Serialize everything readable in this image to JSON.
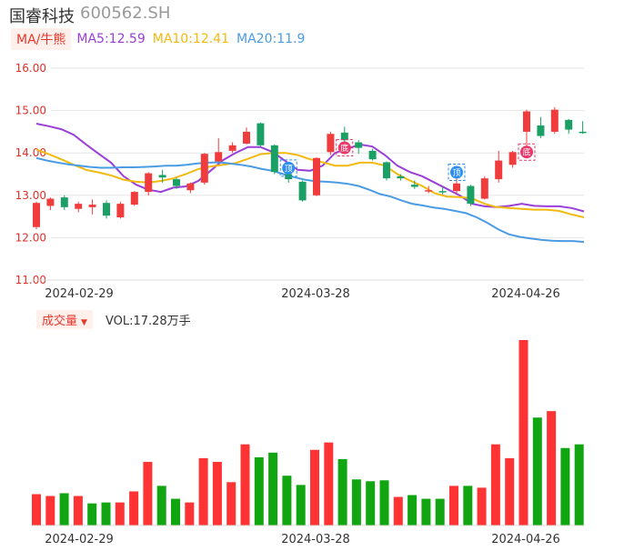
{
  "header": {
    "name": "国睿科技",
    "code": "600562.SH"
  },
  "legend": {
    "ma_button": "MA/牛熊",
    "ma5": "MA5:12.59",
    "ma10": "MA10:12.41",
    "ma20": "MA20:11.9",
    "vol_button": "成交量",
    "vol_caret": "▼",
    "vol_value": "VOL:17.28万手"
  },
  "colors": {
    "up": "#f03c3c",
    "down": "#1aa064",
    "vol_up": "#ff3333",
    "vol_down": "#11a511",
    "ma5": "#9a3fd8",
    "ma10": "#f2b90f",
    "ma20": "#4a9be4",
    "tick": "#e0302a",
    "date": "#333333"
  },
  "chart_data": [
    {
      "type": "candlestick",
      "ylim": [
        11.0,
        16.0
      ],
      "y_ticks": [
        "16.00",
        "15.00",
        "14.00",
        "13.00",
        "12.00",
        "11.00"
      ],
      "x_ticks": [
        "2024-02-29",
        "2024-03-28",
        "2024-04-26"
      ],
      "series": [
        {
          "name": "MA5",
          "values": [
            14.69,
            14.63,
            14.56,
            14.43,
            14.2,
            13.98,
            13.77,
            13.45,
            13.25,
            13.13,
            13.08,
            13.18,
            13.21,
            13.34,
            13.58,
            13.83,
            14.0,
            14.14,
            14.14,
            14.02,
            13.81,
            13.6,
            13.58,
            13.7,
            14.0,
            14.1,
            14.2,
            14.15,
            13.95,
            13.7,
            13.55,
            13.45,
            13.3,
            13.15,
            13.0,
            12.8,
            12.74,
            12.72,
            12.75,
            12.8,
            12.75,
            12.74,
            12.74,
            12.7,
            12.62
          ]
        },
        {
          "name": "MA10",
          "values": [
            14.08,
            13.97,
            13.85,
            13.72,
            13.6,
            13.54,
            13.47,
            13.37,
            13.32,
            13.3,
            13.34,
            13.4,
            13.5,
            13.62,
            13.68,
            13.72,
            13.76,
            13.86,
            13.97,
            14.0,
            14.0,
            13.95,
            13.85,
            13.78,
            13.7,
            13.7,
            13.77,
            13.77,
            13.7,
            13.5,
            13.35,
            13.22,
            13.05,
            12.97,
            12.96,
            12.93,
            12.8,
            12.72,
            12.7,
            12.68,
            12.66,
            12.66,
            12.63,
            12.55,
            12.48
          ]
        },
        {
          "name": "MA20",
          "values": [
            13.88,
            13.82,
            13.77,
            13.73,
            13.7,
            13.67,
            13.65,
            13.65,
            13.66,
            13.66,
            13.67,
            13.68,
            13.7,
            13.7,
            13.72,
            13.75,
            13.77,
            13.78,
            13.75,
            13.72,
            13.68,
            13.62,
            13.58,
            13.5,
            13.43,
            13.37,
            13.33,
            13.32,
            13.3,
            13.27,
            13.22,
            13.13,
            13.03,
            12.97,
            12.88,
            12.8,
            12.76,
            12.71,
            12.68,
            12.63,
            12.58,
            12.48,
            12.35,
            12.2,
            12.08,
            12.02,
            11.98,
            11.95,
            11.93,
            11.92,
            11.92,
            11.9
          ]
        }
      ],
      "candles": [
        {
          "o": 12.25,
          "h": 12.85,
          "l": 12.2,
          "c": 12.82
        },
        {
          "o": 12.75,
          "h": 12.95,
          "l": 12.65,
          "c": 12.92
        },
        {
          "o": 12.95,
          "h": 13.0,
          "l": 12.65,
          "c": 12.72
        },
        {
          "o": 12.68,
          "h": 12.85,
          "l": 12.6,
          "c": 12.8
        },
        {
          "o": 12.72,
          "h": 12.9,
          "l": 12.55,
          "c": 12.78
        },
        {
          "o": 12.82,
          "h": 12.88,
          "l": 12.45,
          "c": 12.52
        },
        {
          "o": 12.48,
          "h": 12.85,
          "l": 12.45,
          "c": 12.8
        },
        {
          "o": 12.78,
          "h": 13.1,
          "l": 12.75,
          "c": 13.08
        },
        {
          "o": 13.08,
          "h": 13.55,
          "l": 13.0,
          "c": 13.52
        },
        {
          "o": 13.48,
          "h": 13.6,
          "l": 13.3,
          "c": 13.42
        },
        {
          "o": 13.38,
          "h": 13.42,
          "l": 13.15,
          "c": 13.22
        },
        {
          "o": 13.12,
          "h": 13.3,
          "l": 13.05,
          "c": 13.28
        },
        {
          "o": 13.3,
          "h": 14.0,
          "l": 13.25,
          "c": 13.98
        },
        {
          "o": 13.8,
          "h": 14.35,
          "l": 13.78,
          "c": 14.02
        },
        {
          "o": 14.05,
          "h": 14.25,
          "l": 14.0,
          "c": 14.18
        },
        {
          "o": 14.22,
          "h": 14.6,
          "l": 14.2,
          "c": 14.5
        },
        {
          "o": 14.7,
          "h": 14.72,
          "l": 14.15,
          "c": 14.18
        },
        {
          "o": 14.18,
          "h": 14.2,
          "l": 13.5,
          "c": 13.55
        },
        {
          "o": 13.5,
          "h": 13.6,
          "l": 13.3,
          "c": 13.38
        },
        {
          "o": 13.32,
          "h": 13.35,
          "l": 12.85,
          "c": 12.88
        },
        {
          "o": 13.0,
          "h": 13.9,
          "l": 12.98,
          "c": 13.88
        },
        {
          "o": 14.02,
          "h": 14.5,
          "l": 13.95,
          "c": 14.45
        },
        {
          "o": 14.48,
          "h": 14.62,
          "l": 14.25,
          "c": 14.3
        },
        {
          "o": 14.25,
          "h": 14.3,
          "l": 13.98,
          "c": 14.12
        },
        {
          "o": 14.05,
          "h": 14.1,
          "l": 13.82,
          "c": 13.85
        },
        {
          "o": 13.78,
          "h": 13.8,
          "l": 13.35,
          "c": 13.4
        },
        {
          "o": 13.45,
          "h": 13.5,
          "l": 13.35,
          "c": 13.4
        },
        {
          "o": 13.25,
          "h": 13.35,
          "l": 13.15,
          "c": 13.2
        },
        {
          "o": 13.1,
          "h": 13.22,
          "l": 13.05,
          "c": 13.12
        },
        {
          "o": 13.1,
          "h": 13.2,
          "l": 13.02,
          "c": 13.08
        },
        {
          "o": 13.1,
          "h": 13.5,
          "l": 13.05,
          "c": 13.28
        },
        {
          "o": 13.22,
          "h": 13.25,
          "l": 12.75,
          "c": 12.8
        },
        {
          "o": 12.92,
          "h": 13.45,
          "l": 12.9,
          "c": 13.4
        },
        {
          "o": 13.38,
          "h": 14.05,
          "l": 13.3,
          "c": 13.82
        },
        {
          "o": 13.72,
          "h": 14.05,
          "l": 13.65,
          "c": 14.02
        },
        {
          "o": 14.5,
          "h": 15.02,
          "l": 14.15,
          "c": 14.98
        },
        {
          "o": 14.65,
          "h": 14.85,
          "l": 14.35,
          "c": 14.4
        },
        {
          "o": 14.5,
          "h": 15.08,
          "l": 14.45,
          "c": 15.02
        },
        {
          "o": 14.78,
          "h": 14.8,
          "l": 14.45,
          "c": 14.55
        },
        {
          "o": 14.5,
          "h": 14.75,
          "l": 14.45,
          "c": 14.48
        }
      ],
      "signals": [
        {
          "label": "顶",
          "index": 18,
          "kind": "top"
        },
        {
          "label": "底",
          "index": 22,
          "kind": "bottom"
        },
        {
          "label": "顶",
          "index": 30,
          "kind": "top"
        },
        {
          "label": "底",
          "index": 35,
          "kind": "bottom"
        }
      ]
    },
    {
      "type": "bar",
      "title": "成交量",
      "x_ticks": [
        "2024-02-29",
        "2024-03-28",
        "2024-04-26"
      ],
      "values": [
        3.4,
        3.2,
        3.5,
        3.2,
        2.4,
        2.5,
        2.5,
        3.7,
        6.9,
        4.3,
        2.9,
        2.5,
        7.3,
        6.9,
        4.7,
        8.8,
        7.4,
        7.9,
        5.4,
        4.4,
        8.2,
        9.0,
        7.2,
        5.0,
        4.8,
        4.9,
        3.1,
        3.3,
        2.9,
        2.9,
        4.3,
        4.3,
        4.1,
        8.8,
        7.3,
        20.1,
        11.7,
        12.4,
        8.4,
        8.8
      ],
      "up": [
        true,
        true,
        false,
        true,
        false,
        false,
        true,
        true,
        true,
        false,
        false,
        true,
        true,
        true,
        true,
        true,
        false,
        false,
        false,
        false,
        true,
        true,
        false,
        false,
        false,
        false,
        true,
        false,
        false,
        false,
        true,
        false,
        true,
        true,
        true,
        true,
        false,
        true,
        false,
        false
      ]
    }
  ]
}
